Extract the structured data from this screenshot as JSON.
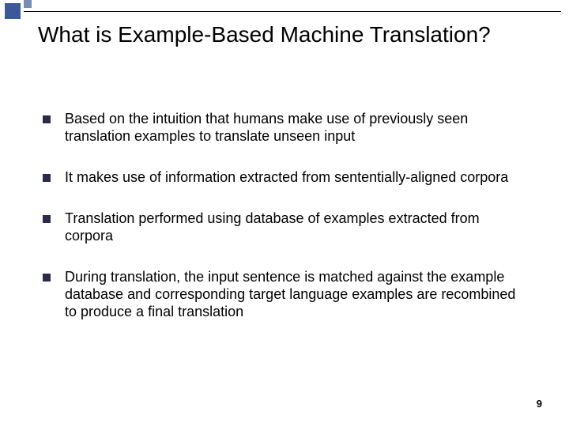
{
  "slide": {
    "title": "What is Example-Based Machine Translation?",
    "bullets": [
      "Based on the intuition that humans make use of previously seen translation examples to translate unseen input",
      "It makes use of information extracted from sententially-aligned corpora",
      "Translation performed using database of examples extracted from corpora",
      "During translation, the input sentence is matched against the example database and corresponding target language examples are recombined to produce a final translation"
    ],
    "page_number": "9"
  },
  "style": {
    "background_color": "#ffffff",
    "title_fontsize": 28,
    "title_color": "#000000",
    "bullet_fontsize": 18,
    "bullet_text_color": "#000000",
    "bullet_mark_color": "#2a2a4a",
    "accent_big_color": "#3b5998",
    "accent_small_color": "#7a8bb3",
    "page_number_fontsize": 13
  }
}
